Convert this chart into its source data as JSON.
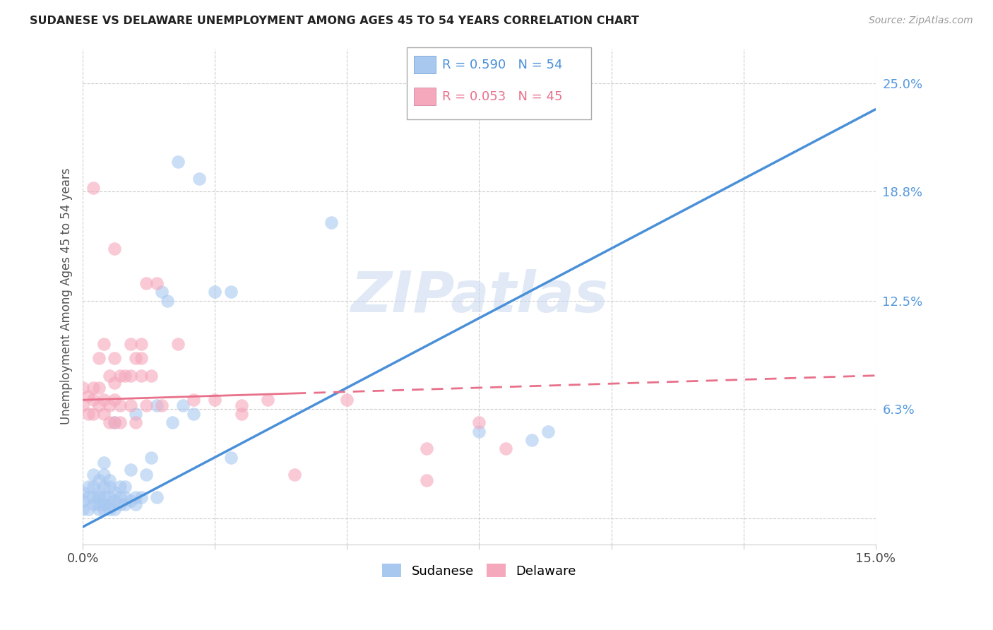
{
  "title": "SUDANESE VS DELAWARE UNEMPLOYMENT AMONG AGES 45 TO 54 YEARS CORRELATION CHART",
  "source": "Source: ZipAtlas.com",
  "ylabel": "Unemployment Among Ages 45 to 54 years",
  "xlim": [
    0.0,
    0.15
  ],
  "ylim": [
    -0.015,
    0.27
  ],
  "yticks": [
    0.0,
    0.063,
    0.125,
    0.188,
    0.25
  ],
  "ytick_labels": [
    "",
    "6.3%",
    "12.5%",
    "18.8%",
    "25.0%"
  ],
  "xticks": [
    0.0,
    0.025,
    0.05,
    0.075,
    0.1,
    0.125,
    0.15
  ],
  "xtick_labels": [
    "0.0%",
    "",
    "",
    "",
    "",
    "",
    "15.0%"
  ],
  "sudanese_color": "#a8c8f0",
  "delaware_color": "#f5a8bc",
  "sudanese_line_color": "#4a90d9",
  "delaware_line_color": "#e8708a",
  "sudanese_R": 0.59,
  "sudanese_N": 54,
  "delaware_R": 0.053,
  "delaware_N": 45,
  "background_color": "#ffffff",
  "grid_color": "#cccccc",
  "watermark": "ZIPatlas",
  "sudanese_line_x0": 0.0,
  "sudanese_line_y0": -0.005,
  "sudanese_line_x1": 0.15,
  "sudanese_line_y1": 0.235,
  "delaware_line_x0": 0.0,
  "delaware_line_y0": 0.068,
  "delaware_line_x1": 0.15,
  "delaware_line_y1": 0.082,
  "sudanese_x": [
    0.0,
    0.0,
    0.0,
    0.001,
    0.001,
    0.001,
    0.002,
    0.002,
    0.002,
    0.002,
    0.003,
    0.003,
    0.003,
    0.003,
    0.003,
    0.004,
    0.004,
    0.004,
    0.004,
    0.004,
    0.004,
    0.005,
    0.005,
    0.005,
    0.005,
    0.005,
    0.006,
    0.006,
    0.006,
    0.006,
    0.007,
    0.007,
    0.007,
    0.008,
    0.008,
    0.008,
    0.009,
    0.009,
    0.01,
    0.01,
    0.01,
    0.011,
    0.012,
    0.013,
    0.014,
    0.014,
    0.015,
    0.016,
    0.017,
    0.019,
    0.021,
    0.025,
    0.075,
    0.085
  ],
  "sudanese_y": [
    0.005,
    0.01,
    0.015,
    0.005,
    0.012,
    0.018,
    0.008,
    0.012,
    0.018,
    0.025,
    0.005,
    0.008,
    0.012,
    0.015,
    0.022,
    0.005,
    0.008,
    0.012,
    0.018,
    0.025,
    0.032,
    0.005,
    0.008,
    0.012,
    0.018,
    0.022,
    0.005,
    0.01,
    0.015,
    0.055,
    0.008,
    0.012,
    0.018,
    0.008,
    0.012,
    0.018,
    0.01,
    0.028,
    0.008,
    0.012,
    0.06,
    0.012,
    0.025,
    0.035,
    0.012,
    0.065,
    0.13,
    0.125,
    0.055,
    0.065,
    0.06,
    0.13,
    0.05,
    0.045
  ],
  "delaware_x": [
    0.0,
    0.0,
    0.001,
    0.001,
    0.002,
    0.002,
    0.002,
    0.003,
    0.003,
    0.003,
    0.004,
    0.004,
    0.004,
    0.005,
    0.005,
    0.005,
    0.006,
    0.006,
    0.006,
    0.006,
    0.007,
    0.007,
    0.007,
    0.008,
    0.009,
    0.009,
    0.009,
    0.01,
    0.01,
    0.011,
    0.011,
    0.011,
    0.012,
    0.013,
    0.015,
    0.018,
    0.021,
    0.025,
    0.03,
    0.03,
    0.035,
    0.04,
    0.05,
    0.075,
    0.08
  ],
  "delaware_y": [
    0.065,
    0.075,
    0.06,
    0.07,
    0.06,
    0.068,
    0.075,
    0.065,
    0.075,
    0.092,
    0.06,
    0.068,
    0.1,
    0.055,
    0.065,
    0.082,
    0.055,
    0.068,
    0.078,
    0.092,
    0.055,
    0.065,
    0.082,
    0.082,
    0.065,
    0.082,
    0.1,
    0.055,
    0.092,
    0.082,
    0.092,
    0.1,
    0.065,
    0.082,
    0.065,
    0.1,
    0.068,
    0.068,
    0.06,
    0.065,
    0.068,
    0.025,
    0.068,
    0.055,
    0.04
  ],
  "delaware_outlier_x": [
    0.0
  ],
  "delaware_outlier_y": [
    0.19
  ]
}
